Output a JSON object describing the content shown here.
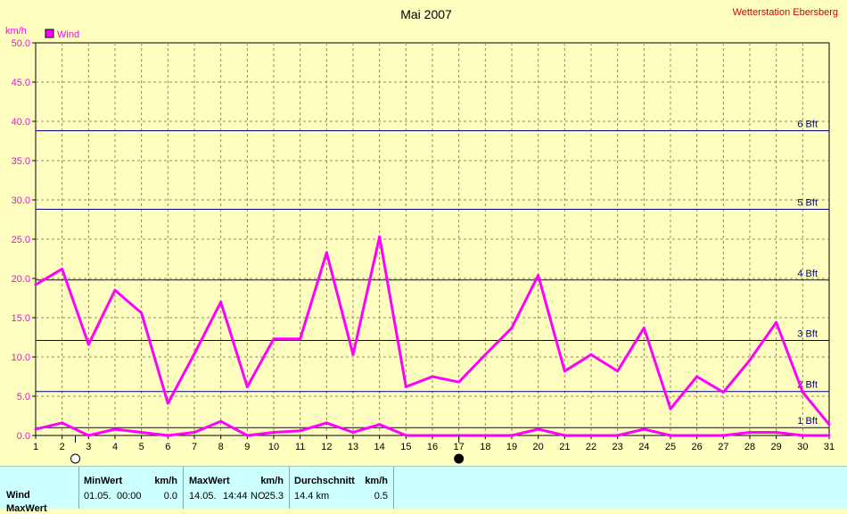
{
  "chart_data": {
    "type": "line",
    "title": "Mai 2007",
    "station": "Wetterstation Ebersberg",
    "ylabel": "km/h",
    "ylim": [
      0,
      50
    ],
    "yticks": [
      "0.0",
      "5.0",
      "10.0",
      "15.0",
      "20.0",
      "25.0",
      "30.0",
      "35.0",
      "40.0",
      "45.0",
      "50.0"
    ],
    "xlim": [
      1,
      31
    ],
    "x": [
      1,
      2,
      3,
      4,
      5,
      6,
      7,
      8,
      9,
      10,
      11,
      12,
      13,
      14,
      15,
      16,
      17,
      18,
      19,
      20,
      21,
      22,
      23,
      24,
      25,
      26,
      27,
      28,
      29,
      30,
      31
    ],
    "grid": true,
    "legend": {
      "position": "top-left",
      "entries": [
        "Wind"
      ]
    },
    "colors": {
      "series": "#ff00ff",
      "beaufort": "#000080",
      "grid": "#8c8c5a",
      "background": "#ffffc0",
      "title_station": "#cc0000"
    },
    "series": [
      {
        "name": "Wind",
        "values": [
          19.2,
          21.2,
          11.6,
          18.5,
          15.6,
          4.1,
          10.4,
          17.0,
          6.2,
          12.3,
          12.3,
          23.3,
          10.3,
          25.3,
          6.2,
          7.5,
          6.8,
          10.3,
          13.7,
          20.4,
          8.2,
          10.3,
          8.2,
          13.7,
          3.4,
          7.5,
          5.5,
          9.6,
          14.4,
          5.5,
          1.4
        ]
      },
      {
        "values": [
          0.8,
          1.6,
          0.0,
          0.8,
          0.4,
          0.0,
          0.4,
          1.8,
          0.0,
          0.4,
          0.6,
          1.6,
          0.4,
          1.4,
          0.0,
          0.0,
          0.0,
          0.0,
          0.0,
          0.8,
          0.0,
          0.0,
          0.0,
          0.8,
          0.0,
          0.0,
          0.0,
          0.4,
          0.4,
          0.0,
          0.0
        ]
      }
    ],
    "beaufort_lines": [
      {
        "label": "1 Bft",
        "value": 1.0
      },
      {
        "label": "2 Bft",
        "value": 5.6
      },
      {
        "label": "3 Bft",
        "value": 12.1
      },
      {
        "label": "4 Bft",
        "value": 19.8
      },
      {
        "label": "5 Bft",
        "value": 28.8
      },
      {
        "label": "6 Bft",
        "value": 38.8
      }
    ],
    "moon_phases": [
      {
        "day": 2.5,
        "phase": "full"
      },
      {
        "day": 17,
        "phase": "new"
      }
    ]
  },
  "stats": {
    "row_label": "Wind",
    "row_label_2": "MaxWert",
    "min": {
      "header": "MinWert",
      "unit": "km/h",
      "date": "01.05.",
      "time": "00:00",
      "value": "0.0"
    },
    "max": {
      "header": "MaxWert",
      "unit": "km/h",
      "date": "14.05.",
      "time": "14:44",
      "dir": "NO",
      "value": "25.3"
    },
    "avg": {
      "header": "Durchschnitt",
      "unit": "km/h",
      "run": "14.4 km",
      "value": "0.5"
    }
  }
}
